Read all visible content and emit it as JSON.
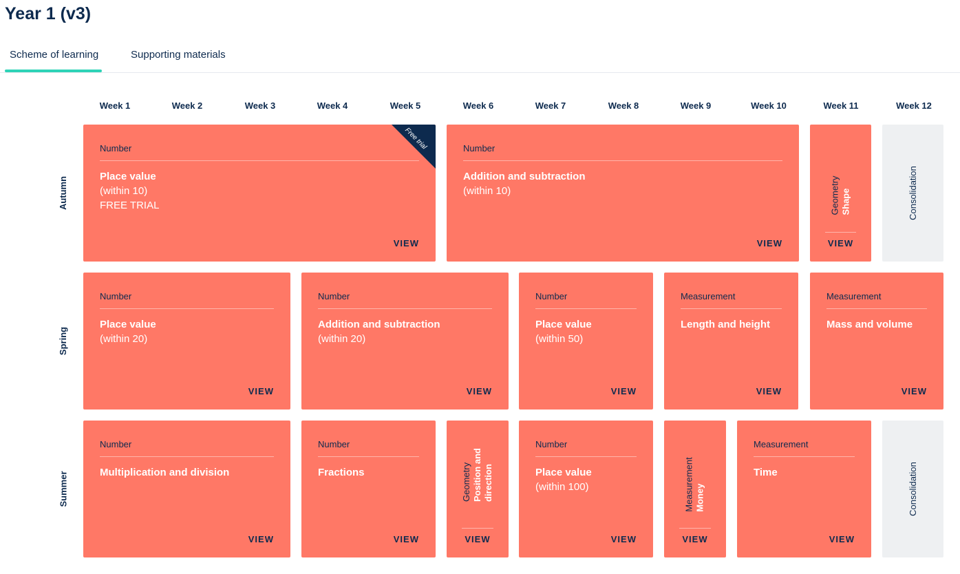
{
  "page": {
    "title": "Year 1 (v3)"
  },
  "tabs": [
    {
      "label": "Scheme of learning",
      "active": true
    },
    {
      "label": "Supporting materials",
      "active": false
    }
  ],
  "weeks": [
    "Week 1",
    "Week 2",
    "Week 3",
    "Week 4",
    "Week 5",
    "Week 6",
    "Week 7",
    "Week 8",
    "Week 9",
    "Week 10",
    "Week 11",
    "Week 12"
  ],
  "terms": [
    "Autumn",
    "Spring",
    "Summer"
  ],
  "view_label": "VIEW",
  "consolidation_label": "Consolidation",
  "ribbon_label": "Free trial",
  "blocks": {
    "autumn_place_value": {
      "category": "Number",
      "title": "Place value",
      "sub": "(within 10)",
      "extra": "FREE TRIAL"
    },
    "autumn_add_sub": {
      "category": "Number",
      "title": "Addition and subtraction",
      "sub": "(within 10)"
    },
    "autumn_shape": {
      "category": "Geometry",
      "title": "Shape"
    },
    "spring_place_value_20": {
      "category": "Number",
      "title": "Place value",
      "sub": "(within 20)"
    },
    "spring_add_sub_20": {
      "category": "Number",
      "title": "Addition and subtraction",
      "sub": "(within 20)"
    },
    "spring_place_value_50": {
      "category": "Number",
      "title": "Place value",
      "sub": "(within 50)"
    },
    "spring_length": {
      "category": "Measurement",
      "title": "Length and height"
    },
    "spring_mass": {
      "category": "Measurement",
      "title": "Mass and volume"
    },
    "summer_mult_div": {
      "category": "Number",
      "title": "Multiplication and division"
    },
    "summer_fractions": {
      "category": "Number",
      "title": "Fractions"
    },
    "summer_position": {
      "category": "Geometry",
      "title_line1": "Position and",
      "title_line2": "direction"
    },
    "summer_place_value_100": {
      "category": "Number",
      "title": "Place value",
      "sub": "(within 100)"
    },
    "summer_money": {
      "category": "Measurement",
      "title": "Money"
    },
    "summer_time": {
      "category": "Measurement",
      "title": "Time"
    }
  },
  "colors": {
    "block": "#ff7866",
    "consolidation": "#eef0f2",
    "navy": "#0d2a4e",
    "tab_underline": "#2ed3b7"
  }
}
